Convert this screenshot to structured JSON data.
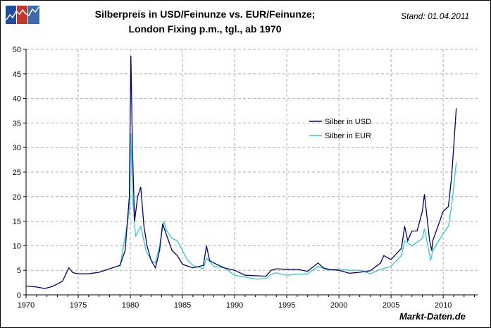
{
  "header": {
    "title_line1": "Silberpreis in USD/Feinunze vs. EUR/Feinunze;",
    "title_line2": "London Fixing p.m., tgl., ab 1970",
    "stand": "Stand: 01.04.2011",
    "brand": "Markt-Daten.de",
    "logo_text": "Markt-Daten.de"
  },
  "chart_data": {
    "type": "line",
    "title": "Silberpreis in USD/Feinunze vs. EUR/Feinunze; London Fixing p.m., tgl., ab 1970",
    "xlim": [
      1970,
      2013.3
    ],
    "ylim": [
      0,
      50
    ],
    "x_ticks": [
      1970,
      1975,
      1980,
      1985,
      1990,
      1995,
      2000,
      2005,
      2010
    ],
    "y_ticks": [
      0,
      5,
      10,
      15,
      20,
      25,
      30,
      35,
      40,
      45,
      50
    ],
    "grid": true,
    "legend_placement": "center-right",
    "series": [
      {
        "name": "Silber in USD",
        "color": "#000080",
        "points": [
          [
            1970,
            1.8
          ],
          [
            1971,
            1.6
          ],
          [
            1971.8,
            1.3
          ],
          [
            1972.5,
            1.7
          ],
          [
            1973,
            2.2
          ],
          [
            1973.5,
            2.8
          ],
          [
            1974.1,
            5.5
          ],
          [
            1974.5,
            4.5
          ],
          [
            1975,
            4.3
          ],
          [
            1976,
            4.3
          ],
          [
            1977,
            4.6
          ],
          [
            1978,
            5.3
          ],
          [
            1979,
            6
          ],
          [
            1979.5,
            9
          ],
          [
            1979.9,
            20
          ],
          [
            1980.05,
            48.7
          ],
          [
            1980.2,
            30
          ],
          [
            1980.4,
            15
          ],
          [
            1980.7,
            20
          ],
          [
            1981.0,
            22
          ],
          [
            1981.3,
            14
          ],
          [
            1981.6,
            10
          ],
          [
            1982,
            7
          ],
          [
            1982.4,
            5.5
          ],
          [
            1982.8,
            9
          ],
          [
            1983.1,
            14.5
          ],
          [
            1983.5,
            12
          ],
          [
            1984,
            9
          ],
          [
            1984.5,
            8
          ],
          [
            1985,
            6.2
          ],
          [
            1986,
            5.5
          ],
          [
            1987,
            6
          ],
          [
            1987.3,
            10
          ],
          [
            1987.6,
            7
          ],
          [
            1988,
            6.5
          ],
          [
            1989,
            5.5
          ],
          [
            1990,
            5
          ],
          [
            1991,
            4
          ],
          [
            1992,
            3.9
          ],
          [
            1993,
            3.8
          ],
          [
            1993.5,
            5
          ],
          [
            1994,
            5.3
          ],
          [
            1995,
            5.2
          ],
          [
            1996,
            5.2
          ],
          [
            1997,
            4.8
          ],
          [
            1998,
            6.5
          ],
          [
            1998.5,
            5.5
          ],
          [
            1999,
            5.2
          ],
          [
            2000,
            5
          ],
          [
            2001,
            4.4
          ],
          [
            2002,
            4.6
          ],
          [
            2003,
            4.9
          ],
          [
            2004,
            6.5
          ],
          [
            2004.3,
            8
          ],
          [
            2005,
            7.2
          ],
          [
            2006,
            9.5
          ],
          [
            2006.3,
            14
          ],
          [
            2006.6,
            11
          ],
          [
            2007,
            13
          ],
          [
            2007.5,
            13
          ],
          [
            2008,
            17
          ],
          [
            2008.2,
            20.5
          ],
          [
            2008.7,
            11
          ],
          [
            2008.9,
            9
          ],
          [
            2009,
            11
          ],
          [
            2009.5,
            14
          ],
          [
            2010,
            17
          ],
          [
            2010.5,
            18
          ],
          [
            2010.8,
            24
          ],
          [
            2011,
            30
          ],
          [
            2011.25,
            38
          ]
        ]
      },
      {
        "name": "Silber in EUR",
        "color": "#33CCCC",
        "points": [
          [
            1979,
            5.6
          ],
          [
            1979.9,
            17
          ],
          [
            1980.05,
            33
          ],
          [
            1980.2,
            20
          ],
          [
            1980.5,
            12
          ],
          [
            1981,
            14
          ],
          [
            1981.5,
            9
          ],
          [
            1982,
            7
          ],
          [
            1982.4,
            6.5
          ],
          [
            1982.8,
            10
          ],
          [
            1983.2,
            15
          ],
          [
            1983.5,
            13
          ],
          [
            1984,
            11.5
          ],
          [
            1984.5,
            11
          ],
          [
            1985,
            9
          ],
          [
            1985.5,
            7
          ],
          [
            1986,
            6
          ],
          [
            1987,
            5.3
          ],
          [
            1987.3,
            7.5
          ],
          [
            1988,
            5.8
          ],
          [
            1989,
            5.5
          ],
          [
            1990,
            4
          ],
          [
            1991,
            3.6
          ],
          [
            1992,
            3.2
          ],
          [
            1993,
            3.3
          ],
          [
            1993.5,
            4.2
          ],
          [
            1994,
            4.5
          ],
          [
            1995,
            4
          ],
          [
            1996,
            4.2
          ],
          [
            1997,
            4.3
          ],
          [
            1998,
            5.8
          ],
          [
            1999,
            5
          ],
          [
            2000,
            5.3
          ],
          [
            2001,
            5
          ],
          [
            2002,
            5
          ],
          [
            2003,
            4.3
          ],
          [
            2004,
            5.2
          ],
          [
            2005,
            5.8
          ],
          [
            2006,
            8
          ],
          [
            2006.3,
            11
          ],
          [
            2007,
            10
          ],
          [
            2008,
            11.5
          ],
          [
            2008.2,
            13.5
          ],
          [
            2008.8,
            7
          ],
          [
            2009,
            9
          ],
          [
            2010,
            12.5
          ],
          [
            2010.5,
            14
          ],
          [
            2010.8,
            18
          ],
          [
            2011,
            22
          ],
          [
            2011.25,
            27
          ]
        ]
      }
    ]
  }
}
